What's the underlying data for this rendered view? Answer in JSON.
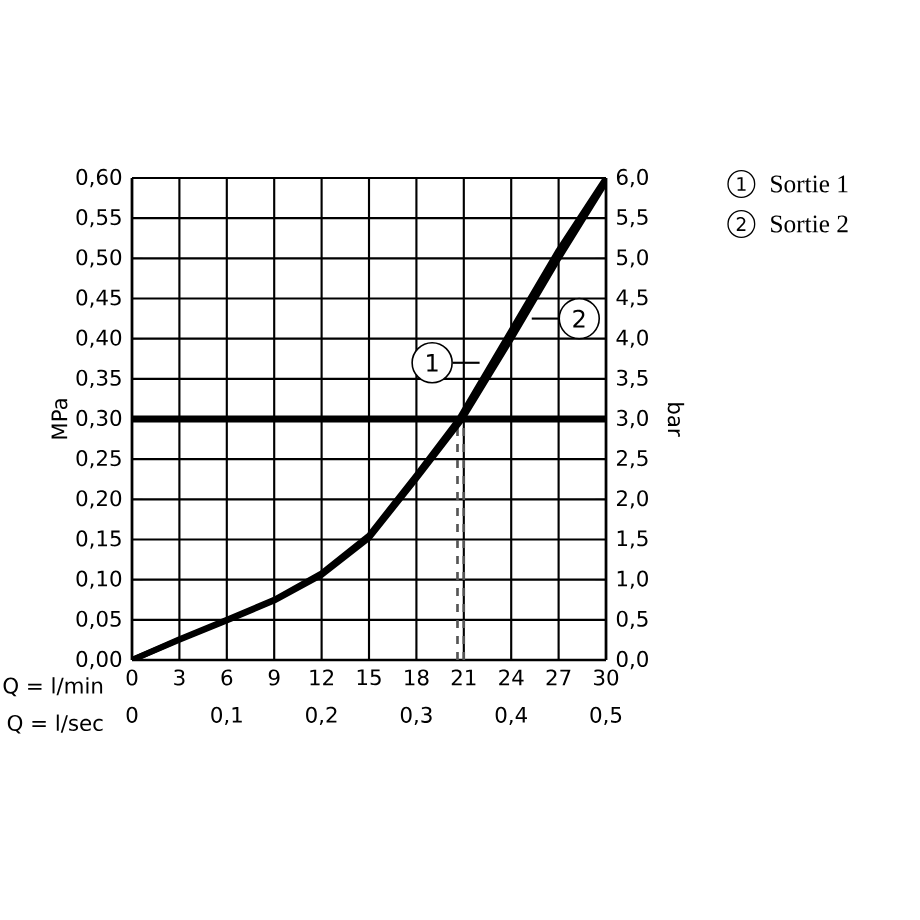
{
  "chart_data": {
    "type": "line",
    "xlabel": "Q = l/min",
    "x2label": "Q = l/sec",
    "ylabel": "MPa",
    "y2label": "bar",
    "xlim": [
      0,
      30
    ],
    "xticks": [
      0,
      3,
      6,
      9,
      12,
      15,
      18,
      21,
      24,
      27,
      30
    ],
    "x2lim": [
      0,
      0.5
    ],
    "x2ticks": [
      0,
      {
        "value": 0.1,
        "label": "0,1"
      },
      {
        "value": 0.2,
        "label": "0,2"
      },
      {
        "value": 0.3,
        "label": "0,3"
      },
      {
        "value": 0.4,
        "label": "0,4"
      },
      {
        "value": 0.5,
        "label": "0,5"
      }
    ],
    "ylim": [
      0,
      0.6
    ],
    "yticks": [
      {
        "value": 0,
        "label": "0,00"
      },
      {
        "value": 0.05,
        "label": "0,05"
      },
      {
        "value": 0.1,
        "label": "0,10"
      },
      {
        "value": 0.15,
        "label": "0,15"
      },
      {
        "value": 0.2,
        "label": "0,20"
      },
      {
        "value": 0.25,
        "label": "0,25"
      },
      {
        "value": 0.3,
        "label": "0,30"
      },
      {
        "value": 0.35,
        "label": "0,35"
      },
      {
        "value": 0.4,
        "label": "0,40"
      },
      {
        "value": 0.45,
        "label": "0,45"
      },
      {
        "value": 0.5,
        "label": "0,50"
      },
      {
        "value": 0.55,
        "label": "0,55"
      },
      {
        "value": 0.6,
        "label": "0,60"
      }
    ],
    "y2lim": [
      0,
      6
    ],
    "y2ticks": [
      {
        "value": 0,
        "label": "0,0"
      },
      {
        "value": 0.5,
        "label": "0,5"
      },
      {
        "value": 1,
        "label": "1,0"
      },
      {
        "value": 1.5,
        "label": "1,5"
      },
      {
        "value": 2,
        "label": "2,0"
      },
      {
        "value": 2.5,
        "label": "2,5"
      },
      {
        "value": 3,
        "label": "3,0"
      },
      {
        "value": 3.5,
        "label": "3,5"
      },
      {
        "value": 4,
        "label": "4,0"
      },
      {
        "value": 4.5,
        "label": "4,5"
      },
      {
        "value": 5,
        "label": "5,0"
      },
      {
        "value": 5.5,
        "label": "5,5"
      },
      {
        "value": 6,
        "label": "6,0"
      }
    ],
    "series": [
      {
        "name": "Sortie 1",
        "color": "#000000",
        "x": [
          0,
          3,
          6,
          9,
          12,
          15,
          18,
          20.7,
          24,
          27,
          30
        ],
        "values": [
          0,
          0.026,
          0.05,
          0.075,
          0.108,
          0.155,
          0.23,
          0.3,
          0.41,
          0.51,
          0.6
        ]
      },
      {
        "name": "Sortie 2",
        "color": "#000000",
        "x": [
          0,
          3,
          6,
          9,
          12,
          15,
          18,
          20.9,
          24,
          27,
          30
        ],
        "values": [
          0,
          0.025,
          0.049,
          0.074,
          0.106,
          0.152,
          0.226,
          0.3,
          0.4,
          0.5,
          0.595
        ]
      }
    ],
    "ref_lines": [
      {
        "axis": "y",
        "value": 0.3,
        "color": "#000000"
      },
      {
        "axis": "x",
        "value": 20.6,
        "color": "#555555",
        "line_style": "dashed"
      },
      {
        "axis": "x",
        "value": 21.0,
        "color": "#555555",
        "line_style": "dashed"
      }
    ],
    "annotations": [
      {
        "text": "1",
        "x": 22,
        "y": 0.37
      },
      {
        "text": "2",
        "x": 25.3,
        "y": 0.425
      }
    ],
    "grid": true,
    "legend": "right",
    "line_style": "solid",
    "marker": "none"
  }
}
